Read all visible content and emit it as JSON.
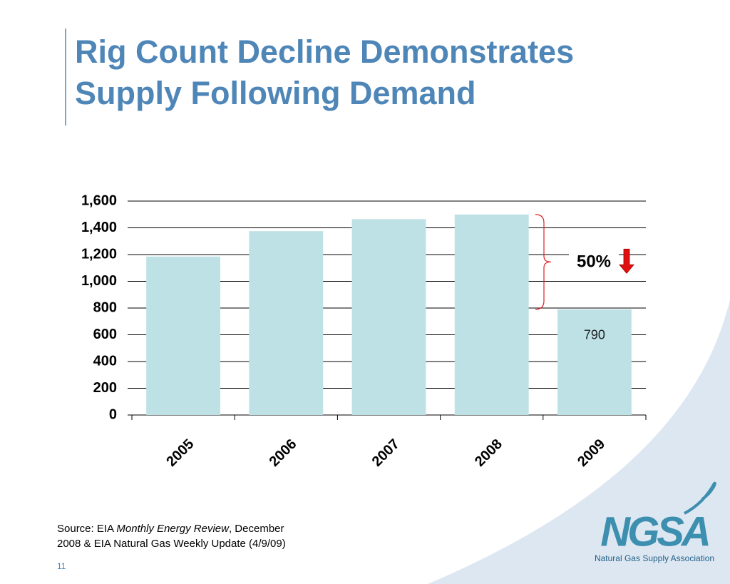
{
  "chart_data": {
    "type": "bar",
    "title": [
      "Rig Count Decline Demonstrates",
      "Supply Following Demand"
    ],
    "categories": [
      "2005",
      "2006",
      "2007",
      "2008",
      "2009"
    ],
    "values": [
      1185,
      1375,
      1465,
      1500,
      790
    ],
    "value_labels": [
      null,
      null,
      null,
      null,
      "790"
    ],
    "color": "#bde1e5",
    "ylim": [
      0,
      1600
    ],
    "yticks": [
      0,
      200,
      400,
      600,
      800,
      {
        "value": 1000,
        "label": "1,000"
      },
      {
        "value": 1200,
        "label": "1,200"
      },
      {
        "value": 1400,
        "label": "1,400"
      },
      {
        "value": 1600,
        "label": "1,600"
      }
    ],
    "grid": true,
    "annotation": "50%",
    "source": [
      "Source:  EIA ",
      "Monthly Energy Review",
      ", December",
      "2008 & EIA Natural Gas Weekly Update (4/9/09)"
    ],
    "slide_number": "11",
    "logo": {
      "text": "NGSA",
      "caption": "Natural Gas Supply Association"
    }
  }
}
